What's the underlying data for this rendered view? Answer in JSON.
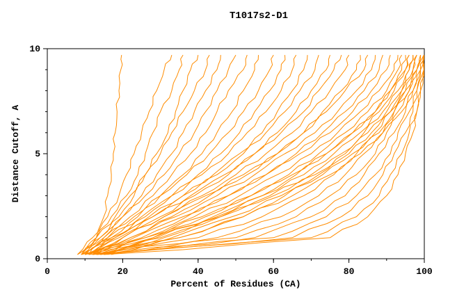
{
  "chart_data": {
    "type": "line",
    "title": "T1017s2-D1",
    "xlabel": "Percent of Residues (CA)",
    "ylabel": "Distance Cutoff, A",
    "xlim": [
      0,
      100
    ],
    "ylim": [
      0,
      10
    ],
    "x_ticks": [
      0,
      20,
      40,
      60,
      80,
      100
    ],
    "y_ticks": [
      0,
      5,
      10
    ],
    "x_minor_step": 10,
    "y_minor_step": 1,
    "grid": false,
    "legend": "none",
    "line_color": "#ff8c00",
    "frame_color": "#000000",
    "y_levels": [
      0.2,
      1,
      2,
      3,
      4,
      5,
      6,
      7,
      8,
      9,
      9.7
    ],
    "series_x_at_y": [
      [
        9,
        13,
        15,
        16,
        17,
        17.5,
        18,
        18.5,
        19,
        19.5,
        19.7
      ],
      [
        8,
        12,
        16,
        19,
        21,
        23,
        25,
        27,
        29,
        31,
        33
      ],
      [
        9,
        13,
        17,
        21,
        24,
        26,
        28,
        30,
        33,
        35,
        36
      ],
      [
        10,
        14,
        19,
        23,
        26,
        29,
        32,
        34,
        36,
        38,
        40
      ],
      [
        8,
        13,
        18,
        22,
        26,
        30,
        33,
        36,
        39,
        42,
        43
      ],
      [
        11,
        15,
        20,
        25,
        29,
        33,
        36,
        39,
        42,
        45,
        46
      ],
      [
        9,
        14,
        20,
        26,
        31,
        35,
        39,
        42,
        45,
        48,
        50
      ],
      [
        10,
        16,
        22,
        28,
        33,
        38,
        42,
        45,
        48,
        52,
        53
      ],
      [
        12,
        17,
        24,
        30,
        36,
        41,
        45,
        49,
        52,
        55,
        56
      ],
      [
        8,
        15,
        23,
        30,
        37,
        43,
        48,
        52,
        56,
        59,
        60
      ],
      [
        11,
        18,
        26,
        33,
        40,
        46,
        51,
        55,
        59,
        62,
        63
      ],
      [
        9,
        16,
        25,
        33,
        41,
        48,
        53,
        58,
        62,
        65,
        66
      ],
      [
        13,
        20,
        28,
        36,
        44,
        51,
        57,
        61,
        65,
        68,
        69
      ],
      [
        10,
        18,
        27,
        36,
        45,
        52,
        58,
        63,
        67,
        71,
        72
      ],
      [
        12,
        20,
        30,
        39,
        48,
        55,
        61,
        66,
        70,
        74,
        75
      ],
      [
        9,
        17,
        28,
        38,
        47,
        55,
        62,
        68,
        72,
        76,
        78
      ],
      [
        11,
        20,
        31,
        41,
        50,
        58,
        65,
        70,
        75,
        79,
        80
      ],
      [
        13,
        22,
        33,
        43,
        53,
        61,
        68,
        73,
        78,
        82,
        83
      ],
      [
        10,
        19,
        31,
        42,
        52,
        61,
        68,
        74,
        79,
        84,
        85
      ],
      [
        12,
        22,
        34,
        45,
        55,
        63,
        71,
        77,
        82,
        86,
        87
      ],
      [
        14,
        25,
        37,
        48,
        58,
        66,
        73,
        79,
        84,
        88,
        89
      ],
      [
        11,
        23,
        36,
        48,
        58,
        67,
        75,
        81,
        86,
        90,
        91
      ],
      [
        13,
        26,
        39,
        51,
        61,
        70,
        77,
        83,
        88,
        92,
        93
      ],
      [
        15,
        28,
        42,
        54,
        64,
        72,
        79,
        85,
        90,
        93,
        94
      ],
      [
        12,
        26,
        41,
        54,
        65,
        74,
        81,
        87,
        91,
        94,
        95
      ],
      [
        14,
        29,
        44,
        57,
        68,
        76,
        83,
        88,
        92,
        95,
        96
      ],
      [
        16,
        31,
        46,
        59,
        70,
        78,
        85,
        90,
        94,
        96,
        97
      ],
      [
        13,
        30,
        46,
        60,
        71,
        80,
        86,
        91,
        95,
        97,
        98
      ],
      [
        15,
        33,
        49,
        62,
        73,
        81,
        88,
        92,
        96,
        98,
        99
      ],
      [
        17,
        35,
        52,
        65,
        75,
        83,
        89,
        94,
        97,
        99,
        100
      ],
      [
        9,
        28,
        45,
        57,
        66,
        74,
        81,
        87,
        91,
        95,
        96
      ],
      [
        10,
        35,
        52,
        63,
        72,
        79,
        84,
        89,
        93,
        96,
        97
      ],
      [
        11,
        40,
        57,
        68,
        76,
        82,
        87,
        91,
        94,
        97,
        98
      ],
      [
        12,
        45,
        62,
        72,
        79,
        84,
        89,
        92,
        95,
        98,
        99
      ],
      [
        13,
        50,
        66,
        75,
        82,
        87,
        90,
        93,
        96,
        98,
        100
      ],
      [
        14,
        55,
        70,
        79,
        84,
        88,
        92,
        95,
        97,
        99,
        100
      ],
      [
        12,
        60,
        74,
        82,
        87,
        91,
        93,
        96,
        98,
        99,
        100
      ],
      [
        13,
        65,
        78,
        85,
        89,
        92,
        95,
        97,
        98,
        100,
        100
      ],
      [
        14,
        70,
        82,
        88,
        91,
        94,
        96,
        98,
        99,
        100,
        100
      ],
      [
        15,
        75,
        85,
        90,
        93,
        95,
        97,
        98,
        99,
        100,
        100
      ]
    ]
  }
}
